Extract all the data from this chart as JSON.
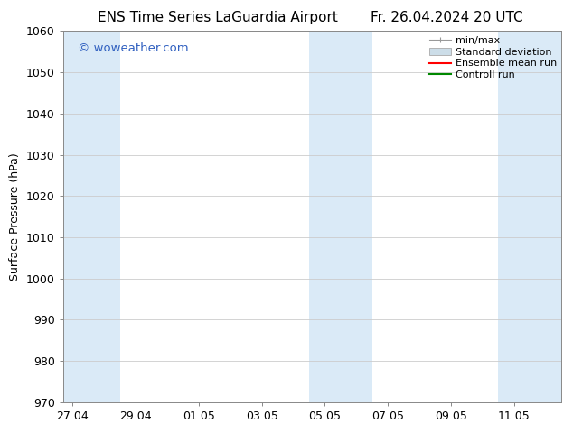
{
  "title_left": "ENS Time Series LaGuardia Airport",
  "title_right": "Fr. 26.04.2024 20 UTC",
  "ylabel": "Surface Pressure (hPa)",
  "watermark": "© woweather.com",
  "watermark_color": "#3060c0",
  "ylim": [
    970,
    1060
  ],
  "yticks": [
    970,
    980,
    990,
    1000,
    1010,
    1020,
    1030,
    1040,
    1050,
    1060
  ],
  "x_tick_labels": [
    "27.04",
    "29.04",
    "01.05",
    "03.05",
    "05.05",
    "07.05",
    "09.05",
    "11.05"
  ],
  "x_tick_positions": [
    0,
    2,
    4,
    6,
    8,
    10,
    12,
    14
  ],
  "x_min": -0.3,
  "x_max": 15.5,
  "shaded_bands": [
    {
      "x_start": -0.3,
      "x_end": 1.5,
      "color": "#daeaf7"
    },
    {
      "x_start": 7.5,
      "x_end": 9.5,
      "color": "#daeaf7"
    },
    {
      "x_start": 13.5,
      "x_end": 15.5,
      "color": "#daeaf7"
    }
  ],
  "legend_entries": [
    {
      "label": "min/max",
      "color": "#aaaaaa",
      "type": "errorbar"
    },
    {
      "label": "Standard deviation",
      "color": "#ccdde8",
      "type": "band"
    },
    {
      "label": "Ensemble mean run",
      "color": "#ff0000",
      "type": "line"
    },
    {
      "label": "Controll run",
      "color": "#008800",
      "type": "line"
    }
  ],
  "bg_color": "#ffffff",
  "plot_bg_color": "#ffffff",
  "grid_color": "#cccccc",
  "title_fontsize": 11,
  "tick_fontsize": 9,
  "ylabel_fontsize": 9,
  "legend_fontsize": 8
}
